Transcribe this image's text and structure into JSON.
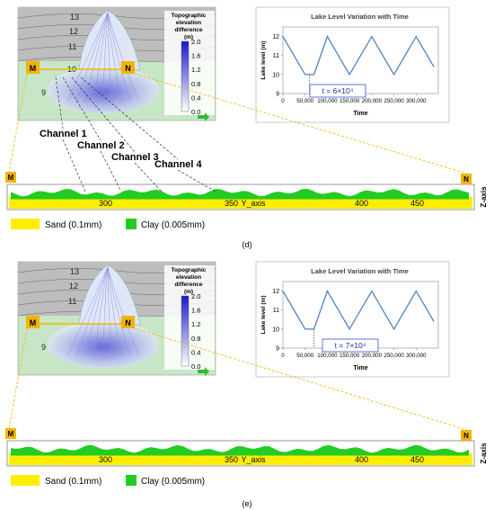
{
  "panels": [
    {
      "caption": "(d)",
      "contours": [
        "13",
        "12",
        "11",
        "10",
        "9"
      ],
      "colorbar": {
        "title_lines": [
          "Topographic",
          "elevation",
          "difference",
          "(m)"
        ],
        "ticks": [
          "2.0",
          "1.6",
          "1.2",
          "0.8",
          "0.4",
          "0.0"
        ]
      },
      "markers": {
        "left": "M",
        "right": "N"
      },
      "channels": [
        "Channel 1",
        "Channel 2",
        "Channel 3",
        "Channel 4"
      ],
      "annotation": "t = 6×10⁴",
      "section": {
        "y_ticks": [
          "300",
          "350",
          "400",
          "450"
        ],
        "axis_label": "Y_axis",
        "z_label": "Z-axis"
      }
    },
    {
      "caption": "(e)",
      "contours": [
        "13",
        "12",
        "11",
        "9"
      ],
      "colorbar": {
        "title_lines": [
          "Topographic",
          "elevation",
          "difference",
          "(m)"
        ],
        "ticks": [
          "2.0",
          "1.6",
          "1.2",
          "0.8",
          "0.4",
          "0.0"
        ]
      },
      "markers": {
        "left": "M",
        "right": "N"
      },
      "channels": [],
      "annotation": "t = 7×10⁴",
      "section": {
        "y_ticks": [
          "300",
          "350",
          "400",
          "450"
        ],
        "axis_label": "Y_axis",
        "z_label": "Z-axis"
      }
    }
  ],
  "legend": {
    "sand": "Sand  (0.1mm)",
    "clay": "Clay  (0.005mm)",
    "sand_color": "#ffee00",
    "clay_color": "#22cc22"
  },
  "chart_data": [
    {
      "type": "line",
      "title": "Lake Level Variation with Time",
      "xlabel": "Time",
      "ylabel": "Lake level (m)",
      "xlim": [
        0,
        350000
      ],
      "ylim": [
        9,
        12.5
      ],
      "x_ticks": [
        "0",
        "50,000",
        "100,000",
        "150,000",
        "200,000",
        "250,000",
        "300,000"
      ],
      "y_ticks": [
        "9",
        "10",
        "11",
        "12"
      ],
      "x": [
        0,
        50000,
        70000,
        100000,
        150000,
        200000,
        250000,
        300000,
        340000
      ],
      "y": [
        12,
        10,
        10,
        12,
        10,
        12,
        10,
        12,
        10.4
      ],
      "marker_time": 60000,
      "color": "#4f81bd"
    },
    {
      "type": "line",
      "title": "Lake Level Variation with Time",
      "xlabel": "Time",
      "ylabel": "Lake level (m)",
      "xlim": [
        0,
        350000
      ],
      "ylim": [
        9,
        12.5
      ],
      "x_ticks": [
        "0",
        "50,000",
        "100,000",
        "150,000",
        "200,000",
        "250,000",
        "300,000"
      ],
      "y_ticks": [
        "9",
        "10",
        "11",
        "12"
      ],
      "x": [
        0,
        50000,
        70000,
        100000,
        150000,
        200000,
        250000,
        300000,
        340000
      ],
      "y": [
        12,
        10,
        10,
        12,
        10,
        12,
        10,
        12,
        10.4
      ],
      "marker_time": 70000,
      "color": "#4f81bd"
    }
  ]
}
